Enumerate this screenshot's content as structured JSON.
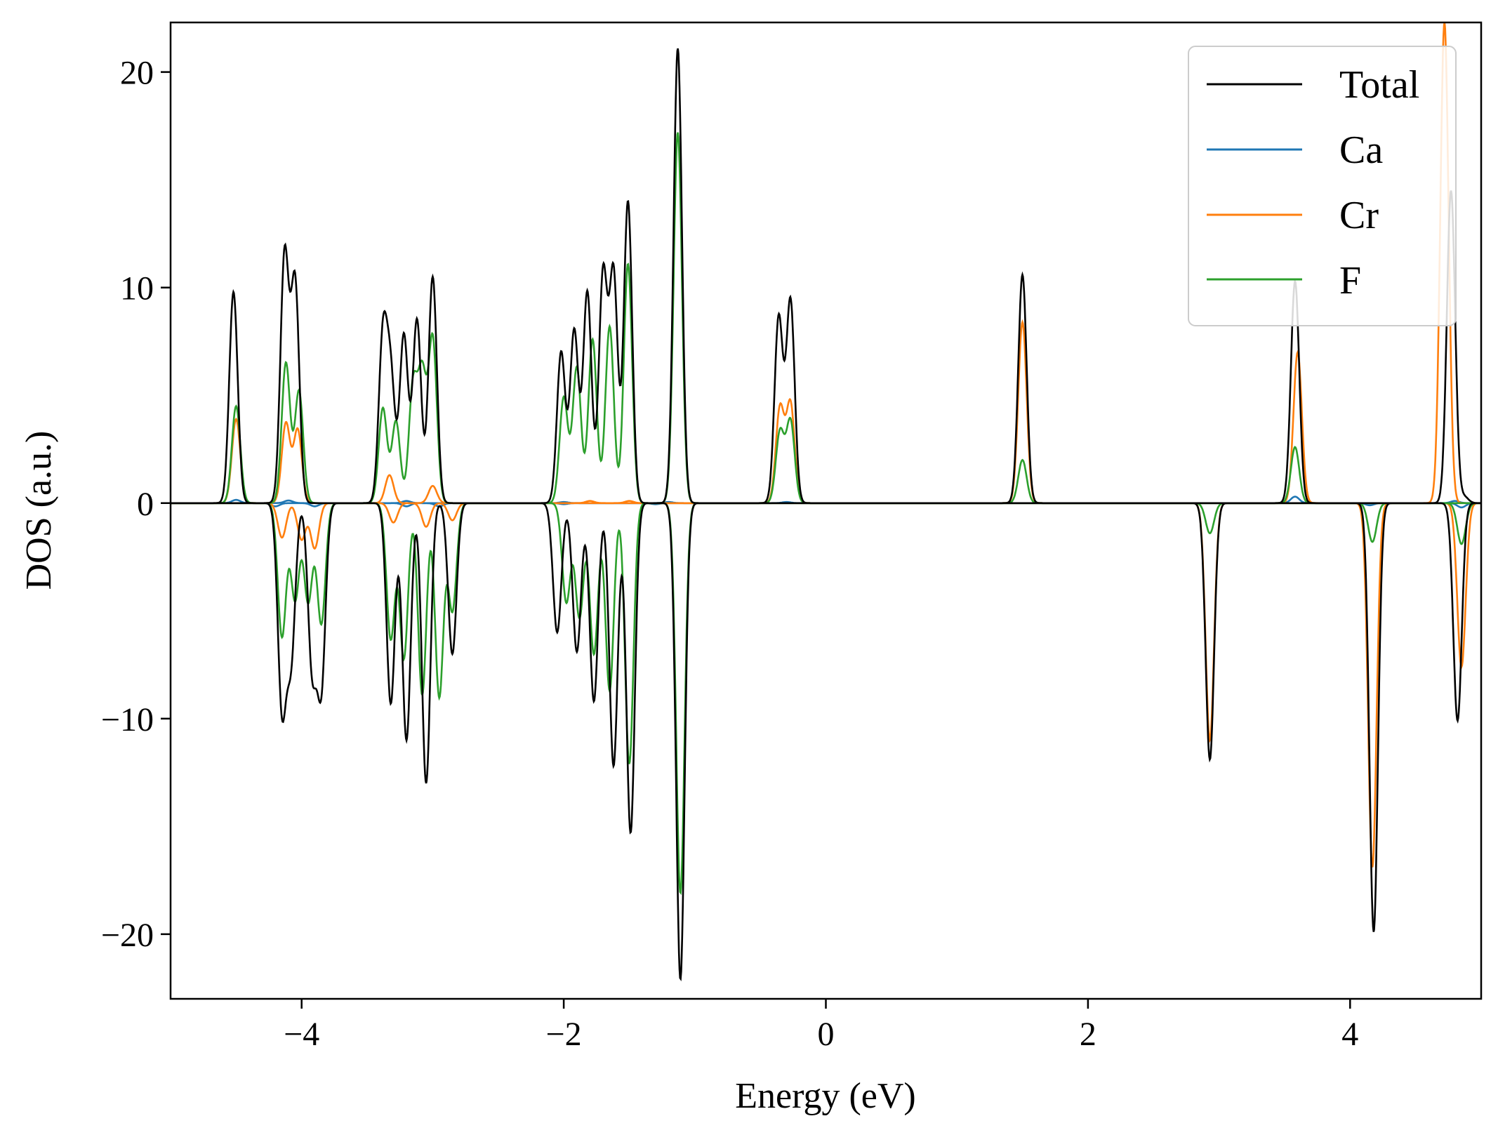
{
  "chart_data": {
    "type": "line",
    "title": "",
    "xlabel": "Energy (eV)",
    "ylabel": "DOS (a.u.)",
    "xlim": [
      -5,
      5
    ],
    "ylim": [
      -23,
      22.3
    ],
    "xticks": [
      -4,
      -2,
      0,
      2,
      4
    ],
    "xtick_labels": [
      "−4",
      "−2",
      "0",
      "2",
      "4"
    ],
    "yticks": [
      -20,
      -10,
      0,
      10,
      20
    ],
    "ytick_labels": [
      "−20",
      "−10",
      "0",
      "10",
      "20"
    ],
    "grid": false,
    "legend_position": "top-right",
    "series": [
      {
        "name": "Total",
        "color": "#000000",
        "up": [
          [
            -4.52,
            9.8
          ],
          [
            -4.13,
            11.5
          ],
          [
            -4.05,
            10.2
          ],
          [
            -3.38,
            7.6
          ],
          [
            -3.32,
            5.7
          ],
          [
            -3.22,
            7.8
          ],
          [
            -3.12,
            8.5
          ],
          [
            -3.0,
            10.5
          ],
          [
            -2.02,
            7.0
          ],
          [
            -1.92,
            8.0
          ],
          [
            -1.82,
            9.8
          ],
          [
            -1.7,
            10.6
          ],
          [
            -1.62,
            10.6
          ],
          [
            -1.51,
            14.0
          ],
          [
            -1.13,
            21.1
          ],
          [
            -0.36,
            8.6
          ],
          [
            -0.27,
            9.4
          ],
          [
            1.5,
            10.6
          ],
          [
            3.58,
            10.3
          ],
          [
            4.77,
            14.5
          ],
          [
            4.87,
            0.3
          ]
        ],
        "down": [
          [
            -4.15,
            -9.4
          ],
          [
            -4.08,
            -7.0
          ],
          [
            -3.92,
            -7.5
          ],
          [
            -3.85,
            -8.4
          ],
          [
            -3.32,
            -9.3
          ],
          [
            -3.2,
            -11.0
          ],
          [
            -3.05,
            -13.0
          ],
          [
            -2.85,
            -7.0
          ],
          [
            -2.05,
            -6.0
          ],
          [
            -1.9,
            -6.9
          ],
          [
            -1.77,
            -9.2
          ],
          [
            -1.62,
            -12.2
          ],
          [
            -1.49,
            -15.3
          ],
          [
            -1.11,
            -22.1
          ],
          [
            2.93,
            -11.9
          ],
          [
            4.18,
            -19.9
          ],
          [
            4.82,
            -10.1
          ]
        ]
      },
      {
        "name": "Ca",
        "color": "#1f77b4",
        "up": [
          [
            -4.5,
            0.15
          ],
          [
            -4.1,
            0.12
          ],
          [
            -3.2,
            0.1
          ],
          [
            -2.0,
            0.05
          ],
          [
            -1.2,
            0.05
          ],
          [
            -0.3,
            0.05
          ],
          [
            3.58,
            0.3
          ],
          [
            4.8,
            0.1
          ]
        ],
        "down": [
          [
            -4.2,
            -0.15
          ],
          [
            -3.9,
            -0.15
          ],
          [
            -3.2,
            -0.15
          ],
          [
            -2.95,
            -0.15
          ],
          [
            -2.0,
            -0.05
          ],
          [
            -1.3,
            -0.05
          ],
          [
            4.15,
            -0.1
          ],
          [
            4.85,
            -0.2
          ]
        ]
      },
      {
        "name": "Cr",
        "color": "#ff7f0e",
        "up": [
          [
            -4.5,
            3.9
          ],
          [
            -4.12,
            3.7
          ],
          [
            -4.03,
            3.4
          ],
          [
            -3.33,
            1.3
          ],
          [
            -3.0,
            0.8
          ],
          [
            -1.8,
            0.1
          ],
          [
            -1.5,
            0.1
          ],
          [
            -0.35,
            4.4
          ],
          [
            -0.27,
            4.6
          ],
          [
            1.5,
            8.4
          ],
          [
            3.6,
            7.0
          ],
          [
            4.72,
            22.3
          ]
        ],
        "down": [
          [
            -4.15,
            -1.6
          ],
          [
            -4.0,
            -1.7
          ],
          [
            -3.9,
            -2.1
          ],
          [
            -3.3,
            -0.9
          ],
          [
            -3.05,
            -1.1
          ],
          [
            -2.85,
            -0.8
          ],
          [
            2.93,
            -11.0
          ],
          [
            4.17,
            -16.9
          ],
          [
            4.85,
            -7.6
          ]
        ]
      },
      {
        "name": "F",
        "color": "#2ca02c",
        "up": [
          [
            -4.5,
            4.5
          ],
          [
            -4.12,
            6.5
          ],
          [
            -4.02,
            5.2
          ],
          [
            -3.38,
            4.4
          ],
          [
            -3.28,
            3.8
          ],
          [
            -3.15,
            5.4
          ],
          [
            -3.08,
            5.8
          ],
          [
            -3.0,
            7.6
          ],
          [
            -2.0,
            4.9
          ],
          [
            -1.9,
            6.3
          ],
          [
            -1.78,
            7.6
          ],
          [
            -1.65,
            8.2
          ],
          [
            -1.51,
            11.1
          ],
          [
            -1.13,
            17.2
          ],
          [
            -0.35,
            3.3
          ],
          [
            -0.27,
            3.8
          ],
          [
            1.5,
            2.0
          ],
          [
            3.58,
            2.6
          ]
        ],
        "down": [
          [
            -4.15,
            -6.2
          ],
          [
            -4.05,
            -4.5
          ],
          [
            -3.95,
            -4.6
          ],
          [
            -3.85,
            -5.6
          ],
          [
            -3.32,
            -6.3
          ],
          [
            -3.22,
            -7.2
          ],
          [
            -3.08,
            -8.9
          ],
          [
            -2.95,
            -9.0
          ],
          [
            -2.85,
            -5.0
          ],
          [
            -1.98,
            -4.6
          ],
          [
            -1.88,
            -5.3
          ],
          [
            -1.77,
            -7.0
          ],
          [
            -1.65,
            -8.7
          ],
          [
            -1.5,
            -12.1
          ],
          [
            -1.11,
            -18.1
          ],
          [
            2.93,
            -1.4
          ],
          [
            4.17,
            -1.8
          ],
          [
            4.85,
            -1.9
          ]
        ]
      }
    ]
  }
}
